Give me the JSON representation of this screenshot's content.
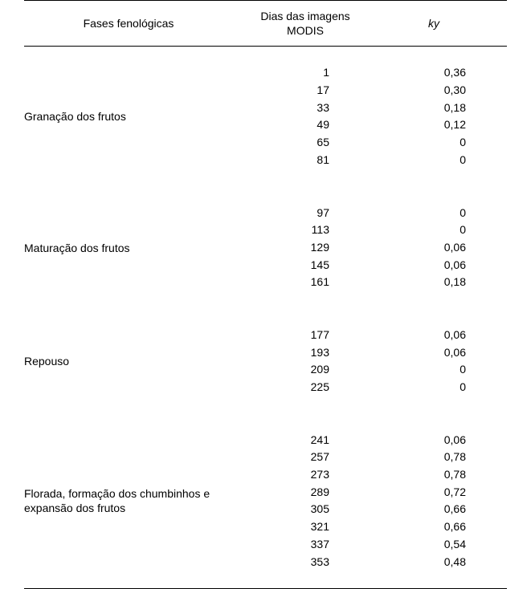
{
  "headers": {
    "phase": "Fases fenológicas",
    "days": "Dias das imagens\nMODIS",
    "ky": "ky"
  },
  "groups": [
    {
      "label": "Granação dos frutos",
      "rows": [
        {
          "day": "1",
          "ky": "0,36"
        },
        {
          "day": "17",
          "ky": "0,30"
        },
        {
          "day": "33",
          "ky": "0,18"
        },
        {
          "day": "49",
          "ky": "0,12"
        },
        {
          "day": "65",
          "ky": "0"
        },
        {
          "day": "81",
          "ky": "0"
        }
      ]
    },
    {
      "label": "Maturação dos frutos",
      "rows": [
        {
          "day": "97",
          "ky": "0"
        },
        {
          "day": "113",
          "ky": "0"
        },
        {
          "day": "129",
          "ky": "0,06"
        },
        {
          "day": "145",
          "ky": "0,06"
        },
        {
          "day": "161",
          "ky": "0,18"
        }
      ]
    },
    {
      "label": "Repouso",
      "rows": [
        {
          "day": "177",
          "ky": "0,06"
        },
        {
          "day": "193",
          "ky": "0,06"
        },
        {
          "day": "209",
          "ky": "0"
        },
        {
          "day": "225",
          "ky": "0"
        }
      ]
    },
    {
      "label": "Florada, formação dos chumbinhos e expansão dos frutos",
      "rows": [
        {
          "day": "241",
          "ky": "0,06"
        },
        {
          "day": "257",
          "ky": "0,78"
        },
        {
          "day": "273",
          "ky": "0,78"
        },
        {
          "day": "289",
          "ky": "0,72"
        },
        {
          "day": "305",
          "ky": "0,66"
        },
        {
          "day": "321",
          "ky": "0,66"
        },
        {
          "day": "337",
          "ky": "0,54"
        },
        {
          "day": "353",
          "ky": "0,48"
        }
      ]
    }
  ]
}
